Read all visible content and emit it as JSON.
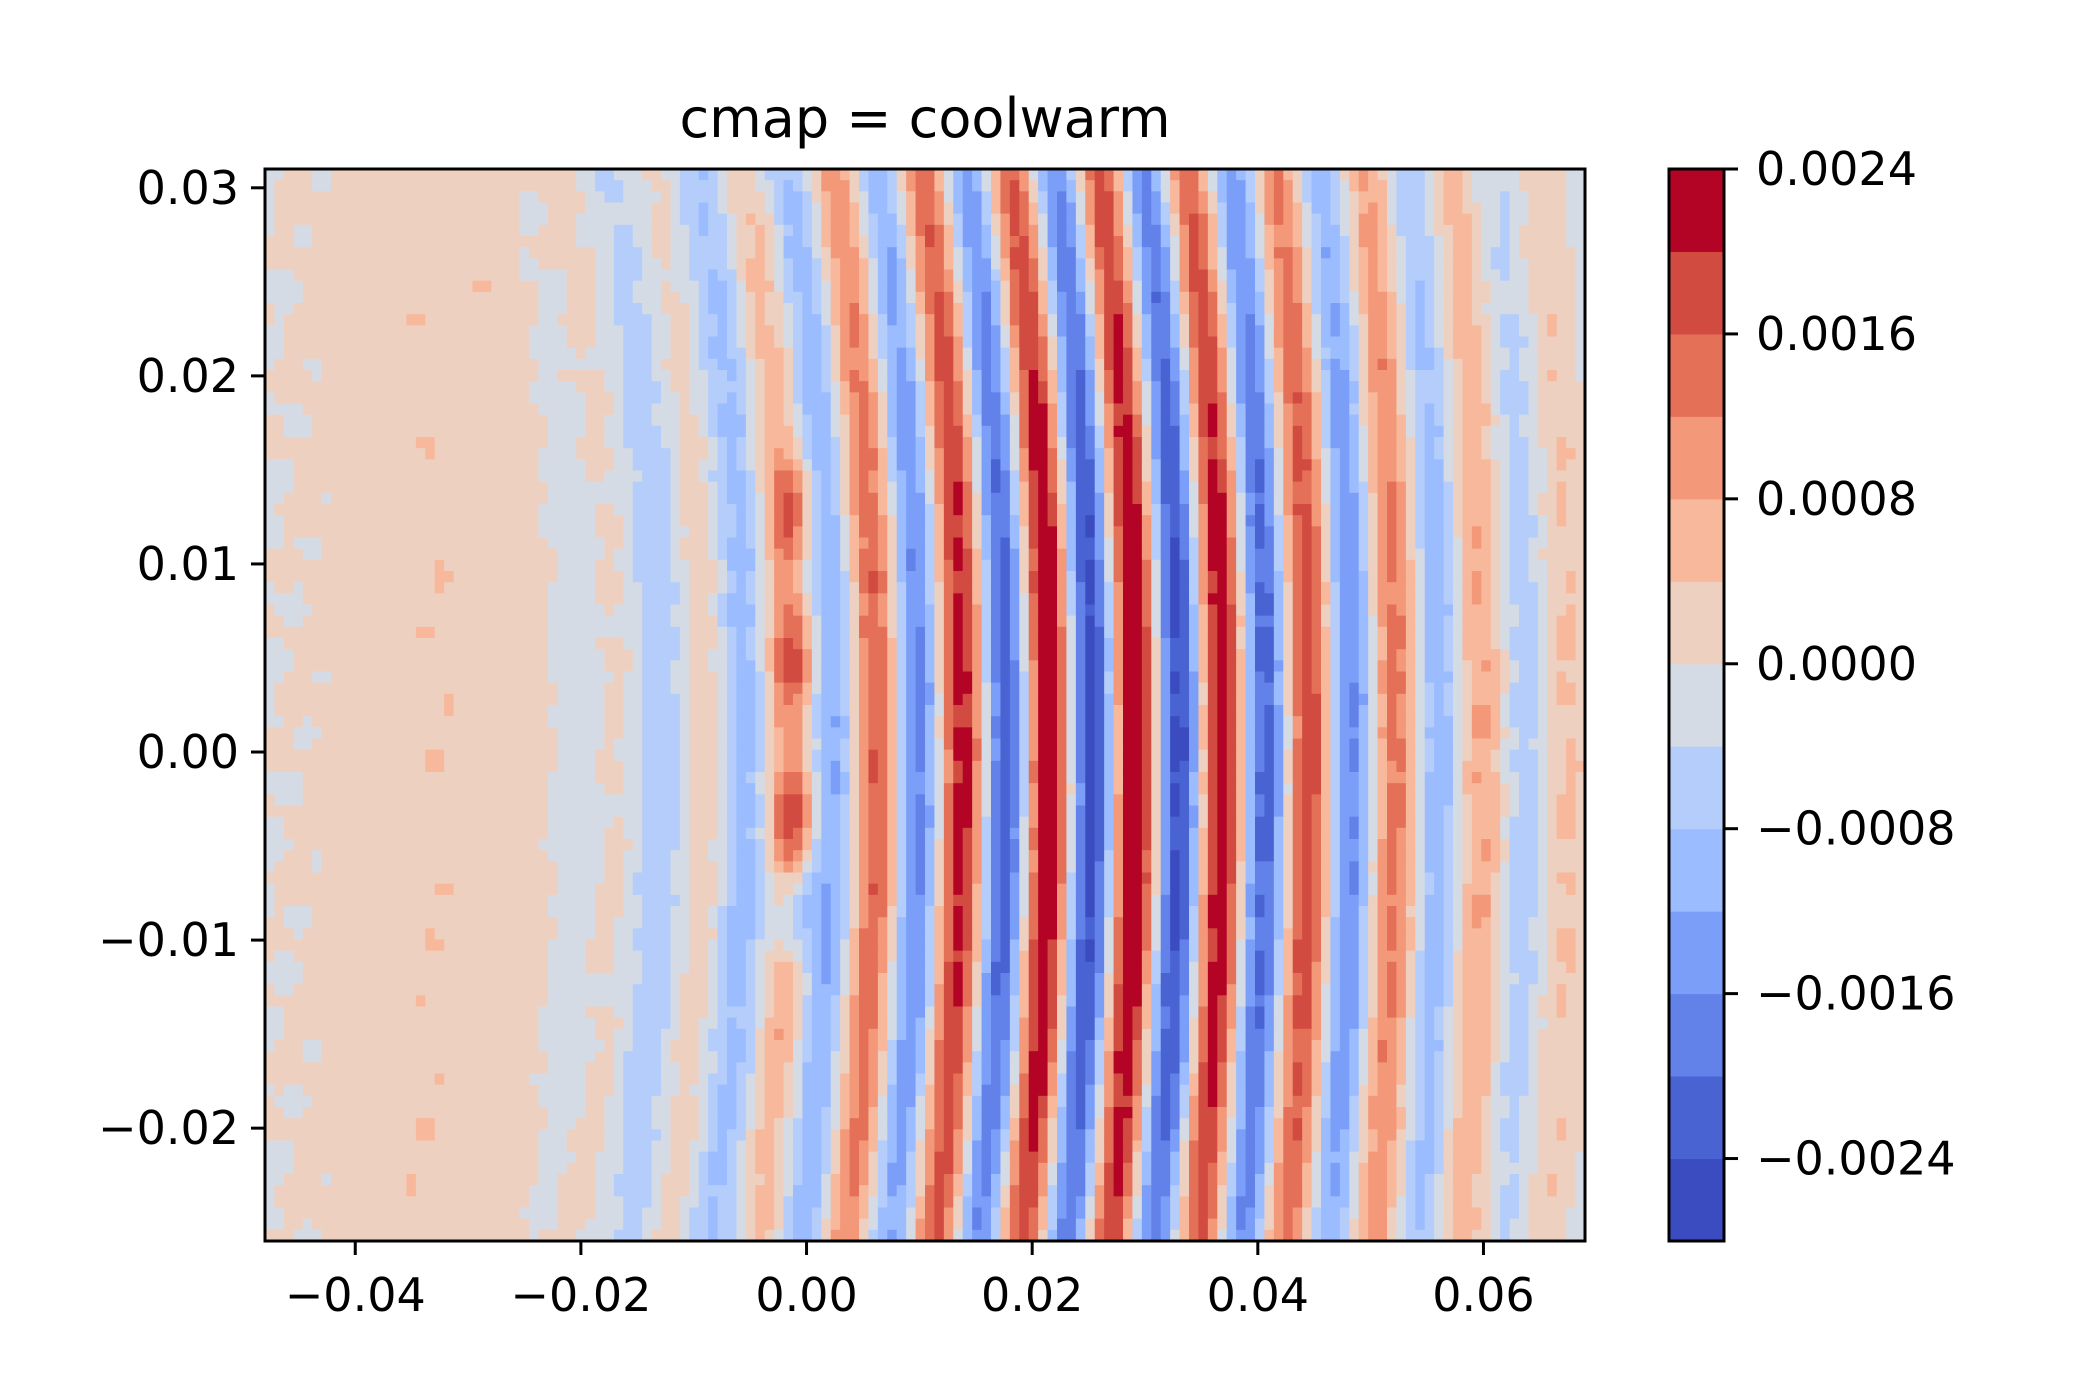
{
  "chart_data": {
    "type": "heatmap",
    "title": "cmap = coolwarm",
    "colormap": "coolwarm",
    "xlim": [
      -0.048,
      0.069
    ],
    "ylim": [
      -0.026,
      0.031
    ],
    "x_ticks": [
      -0.04,
      -0.02,
      0.0,
      0.02,
      0.04,
      0.06
    ],
    "x_tick_labels": [
      "−0.04",
      "−0.02",
      "0.00",
      "0.02",
      "0.04",
      "0.06"
    ],
    "y_ticks": [
      0.03,
      0.02,
      0.01,
      0.0,
      -0.01,
      -0.02
    ],
    "y_tick_labels": [
      "0.03",
      "0.02",
      "0.01",
      "0.00",
      "−0.01",
      "−0.02"
    ],
    "colorbar": {
      "vmin": -0.0028,
      "vmax": 0.0024,
      "ticks": [
        0.0024,
        0.0016,
        0.0008,
        0.0,
        -0.0008,
        -0.0016,
        -0.0024
      ],
      "tick_labels": [
        "0.0024",
        "0.0016",
        "0.0008",
        "0.0000",
        "−0.0008",
        "−0.0016",
        "−0.0024"
      ],
      "level_colors": [
        "#3b4cc0",
        "#4a63d3",
        "#6282ea",
        "#7b9ff9",
        "#9bbcff",
        "#b4cdfa",
        "#d5dbe5",
        "#eed0c0",
        "#f7b89c",
        "#f39879",
        "#e57058",
        "#d24b40",
        "#b40426"
      ]
    },
    "grid": false,
    "field": {
      "wave_center_x": 0.028,
      "wave_center_y": 0.0,
      "wavelength": 0.0077,
      "peak_amplitude": 0.0026,
      "curvature_radius": 0.17,
      "arc_origin_x": -0.12,
      "blobs_x": 0.0,
      "blobs_y": [
        0.013,
        0.005,
        -0.0035,
        -0.0085
      ],
      "blob_signs": [
        1,
        1,
        1,
        -1
      ]
    }
  }
}
